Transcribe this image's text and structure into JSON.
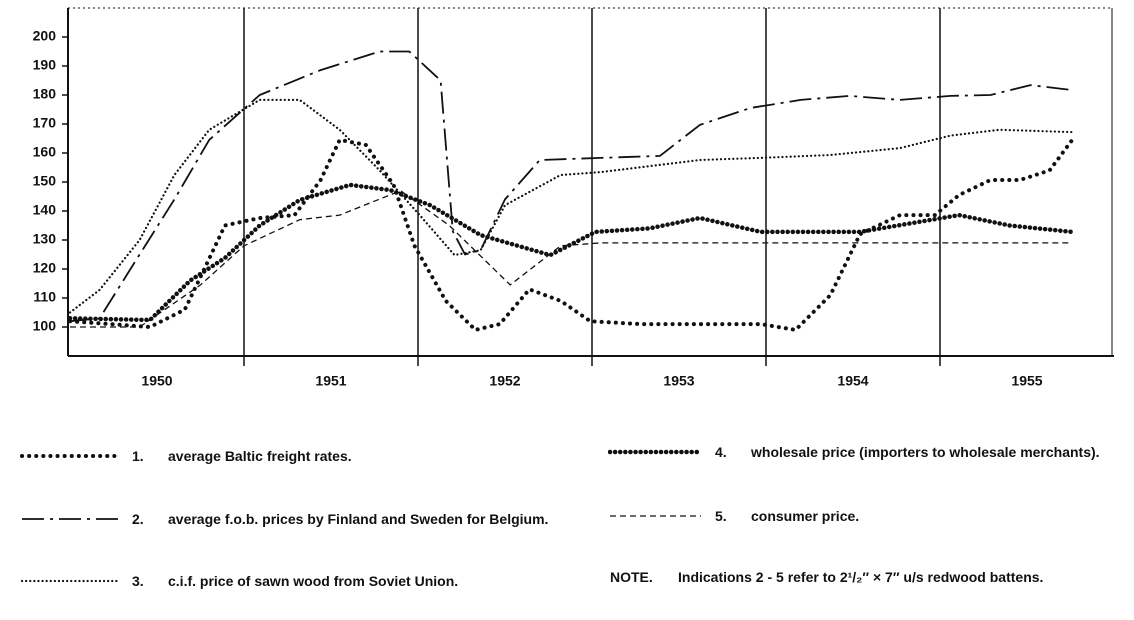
{
  "chart_data": {
    "type": "line",
    "xlim": [
      1950,
      1956
    ],
    "ylim": [
      90,
      210
    ],
    "yticks": [
      100,
      110,
      120,
      130,
      140,
      150,
      160,
      170,
      180,
      190,
      200
    ],
    "xgrid": [
      1951,
      1952,
      1953,
      1954,
      1955
    ],
    "categories": [
      "1950",
      "1951",
      "1952",
      "1953",
      "1954",
      "1955"
    ],
    "series": [
      {
        "number": "1.",
        "name": "average Baltic freight rates.",
        "color": "#111111",
        "style": "circles",
        "x": [
          1950,
          1950.46,
          1950.66,
          1950.78,
          1950.89,
          1951.09,
          1951.29,
          1951.44,
          1951.55,
          1951.7,
          1951.86,
          1951.98,
          1952.16,
          1952.33,
          1952.47,
          1952.64,
          1952.82,
          1952.99,
          1953.28,
          1953.62,
          1953.97,
          1954.17,
          1954.37,
          1954.54,
          1954.77,
          1954.97,
          1955.11,
          1955.29,
          1955.46,
          1955.63,
          1955.76
        ],
        "values": [
          102,
          100,
          106,
          121,
          135,
          137.6,
          138.6,
          150.7,
          164.5,
          162.8,
          149,
          128,
          109,
          99,
          101,
          113,
          109,
          102,
          101,
          101,
          101,
          99,
          111,
          132,
          138.6,
          138.6,
          145.5,
          150.7,
          150.7,
          154,
          164.5
        ]
      },
      {
        "number": "2.",
        "name": "average f.o.b. prices by Finland and Sweden for Belgium.",
        "color": "#111111",
        "style": "dashdot",
        "x": [
          1950,
          1950.17,
          1950.4,
          1950.6,
          1950.8,
          1951.09,
          1951.44,
          1951.78,
          1951.95,
          1952.13,
          1952.2,
          1952.27,
          1952.36,
          1952.5,
          1952.7,
          1953.05,
          1953.39,
          1953.62,
          1953.91,
          1954.2,
          1954.48,
          1954.77,
          1955.06,
          1955.29,
          1955.52,
          1955.76
        ],
        "values": [
          102,
          103,
          125,
          144,
          164.5,
          180,
          188.6,
          195,
          195,
          185,
          133,
          125,
          126.5,
          144,
          157.6,
          158.3,
          159,
          169.7,
          175.5,
          178.3,
          179.7,
          178.3,
          179.7,
          180,
          183.4,
          181.7
        ]
      },
      {
        "number": "3.",
        "name": "c.i.f. price of sawn wood from Soviet Union.",
        "color": "#111111",
        "style": "dotted",
        "x": [
          1950,
          1950.17,
          1950.4,
          1950.6,
          1950.8,
          1951.09,
          1951.32,
          1951.55,
          1951.78,
          1952.01,
          1952.21,
          1952.36,
          1952.5,
          1952.82,
          1953.05,
          1953.62,
          1953.97,
          1954.37,
          1954.77,
          1955.06,
          1955.34,
          1955.76
        ],
        "values": [
          105,
          112.8,
          130,
          152.4,
          168,
          178.3,
          178.3,
          168,
          154,
          138.6,
          124.8,
          126.5,
          142,
          152.4,
          153.4,
          157.6,
          158.3,
          159.3,
          161.7,
          166,
          168,
          167.2
        ]
      },
      {
        "number": "4.",
        "name": "wholesale price (importers to wholesale merchants).",
        "color": "#111111",
        "style": "bolddots",
        "x": [
          1950,
          1950.46,
          1950.69,
          1950.89,
          1951.09,
          1951.32,
          1951.61,
          1951.84,
          1952.07,
          1952.36,
          1952.76,
          1953.02,
          1953.33,
          1953.62,
          1953.97,
          1954.54,
          1955.11,
          1955.4,
          1955.76
        ],
        "values": [
          103,
          102.4,
          116,
          123.8,
          135,
          143.8,
          149,
          147.2,
          142,
          131.7,
          124.8,
          132.8,
          134,
          137.6,
          132.8,
          132.8,
          138.6,
          135,
          132.8
        ]
      },
      {
        "number": "5.",
        "name": "consumer price.",
        "color": "#111111",
        "style": "dashed",
        "x": [
          1950,
          1950.4,
          1950.75,
          1951,
          1951.32,
          1951.55,
          1951.9,
          1952.18,
          1952.53,
          1952.82,
          1953.05,
          1955.76
        ],
        "values": [
          100,
          100,
          114.5,
          128,
          137,
          138.6,
          147,
          135,
          114.5,
          128,
          129,
          129
        ]
      }
    ],
    "note_label": "NOTE.",
    "note": "Indications 2 - 5 refer to 2¹/₂″ × 7″ u/s redwood battens."
  }
}
